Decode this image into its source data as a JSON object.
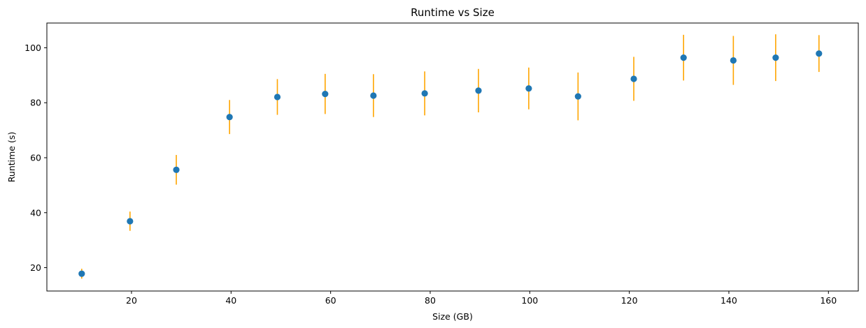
{
  "chart_data": {
    "type": "scatter",
    "title": "Runtime vs Size",
    "xlabel": "Size (GB)",
    "ylabel": "Runtime (s)",
    "xlim": [
      3,
      166
    ],
    "ylim": [
      11.5,
      109
    ],
    "xticks": [
      20,
      40,
      60,
      80,
      100,
      120,
      140,
      160
    ],
    "yticks": [
      20,
      40,
      60,
      80,
      100
    ],
    "grid": false,
    "marker_color": "#1f77b4",
    "errorbar_color": "#ffa500",
    "points": [
      {
        "x": 10,
        "y": 17.8,
        "yerr": 1.8
      },
      {
        "x": 19.7,
        "y": 36.9,
        "yerr": 3.5
      },
      {
        "x": 29,
        "y": 55.6,
        "yerr": 5.4
      },
      {
        "x": 39.7,
        "y": 74.8,
        "yerr": 6.2
      },
      {
        "x": 49.3,
        "y": 82.1,
        "yerr": 6.5
      },
      {
        "x": 58.9,
        "y": 83.2,
        "yerr": 7.3
      },
      {
        "x": 68.6,
        "y": 82.6,
        "yerr": 7.8
      },
      {
        "x": 78.9,
        "y": 83.4,
        "yerr": 8.0
      },
      {
        "x": 89.7,
        "y": 84.4,
        "yerr": 7.9
      },
      {
        "x": 99.8,
        "y": 85.2,
        "yerr": 7.6
      },
      {
        "x": 109.7,
        "y": 82.3,
        "yerr": 8.7
      },
      {
        "x": 120.9,
        "y": 88.7,
        "yerr": 8.0
      },
      {
        "x": 130.9,
        "y": 96.4,
        "yerr": 8.3
      },
      {
        "x": 140.9,
        "y": 95.4,
        "yerr": 8.9
      },
      {
        "x": 149.4,
        "y": 96.4,
        "yerr": 8.5
      },
      {
        "x": 158.1,
        "y": 97.9,
        "yerr": 6.7
      }
    ]
  }
}
